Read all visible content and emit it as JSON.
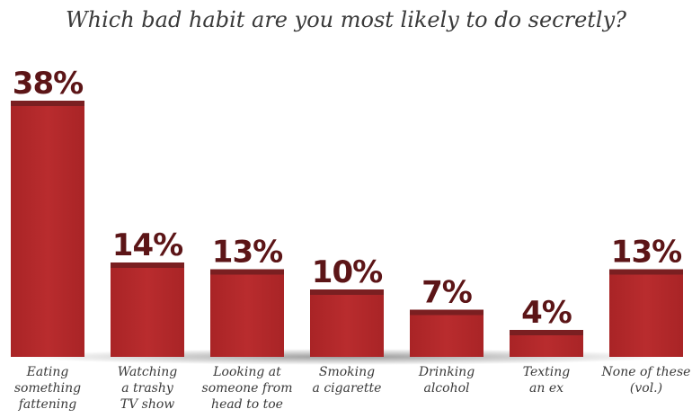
{
  "chart_data": {
    "type": "bar",
    "title": "Which bad habit are you most likely to do secretly?",
    "xlabel": "",
    "ylabel": "",
    "ylim": [
      0,
      40
    ],
    "grid": false,
    "categories": [
      [
        "Eating",
        "something",
        "fattening"
      ],
      [
        "Watching",
        "a trashy",
        "TV show"
      ],
      [
        "Looking at",
        "someone from",
        "head to toe"
      ],
      [
        "Smoking",
        "a cigarette"
      ],
      [
        "Drinking",
        "alcohol"
      ],
      [
        "Texting",
        "an ex"
      ],
      [
        "None of these",
        "(vol.)"
      ]
    ],
    "values": [
      38,
      14,
      13,
      10,
      7,
      4,
      13
    ],
    "value_labels": [
      "38%",
      "14%",
      "13%",
      "10%",
      "7%",
      "4%",
      "13%"
    ]
  },
  "colors": {
    "bar": "#b5292b",
    "bar_cap": "#7a1f21",
    "label": "#5c1517",
    "baseline_shadow": "#9a9a9a"
  }
}
